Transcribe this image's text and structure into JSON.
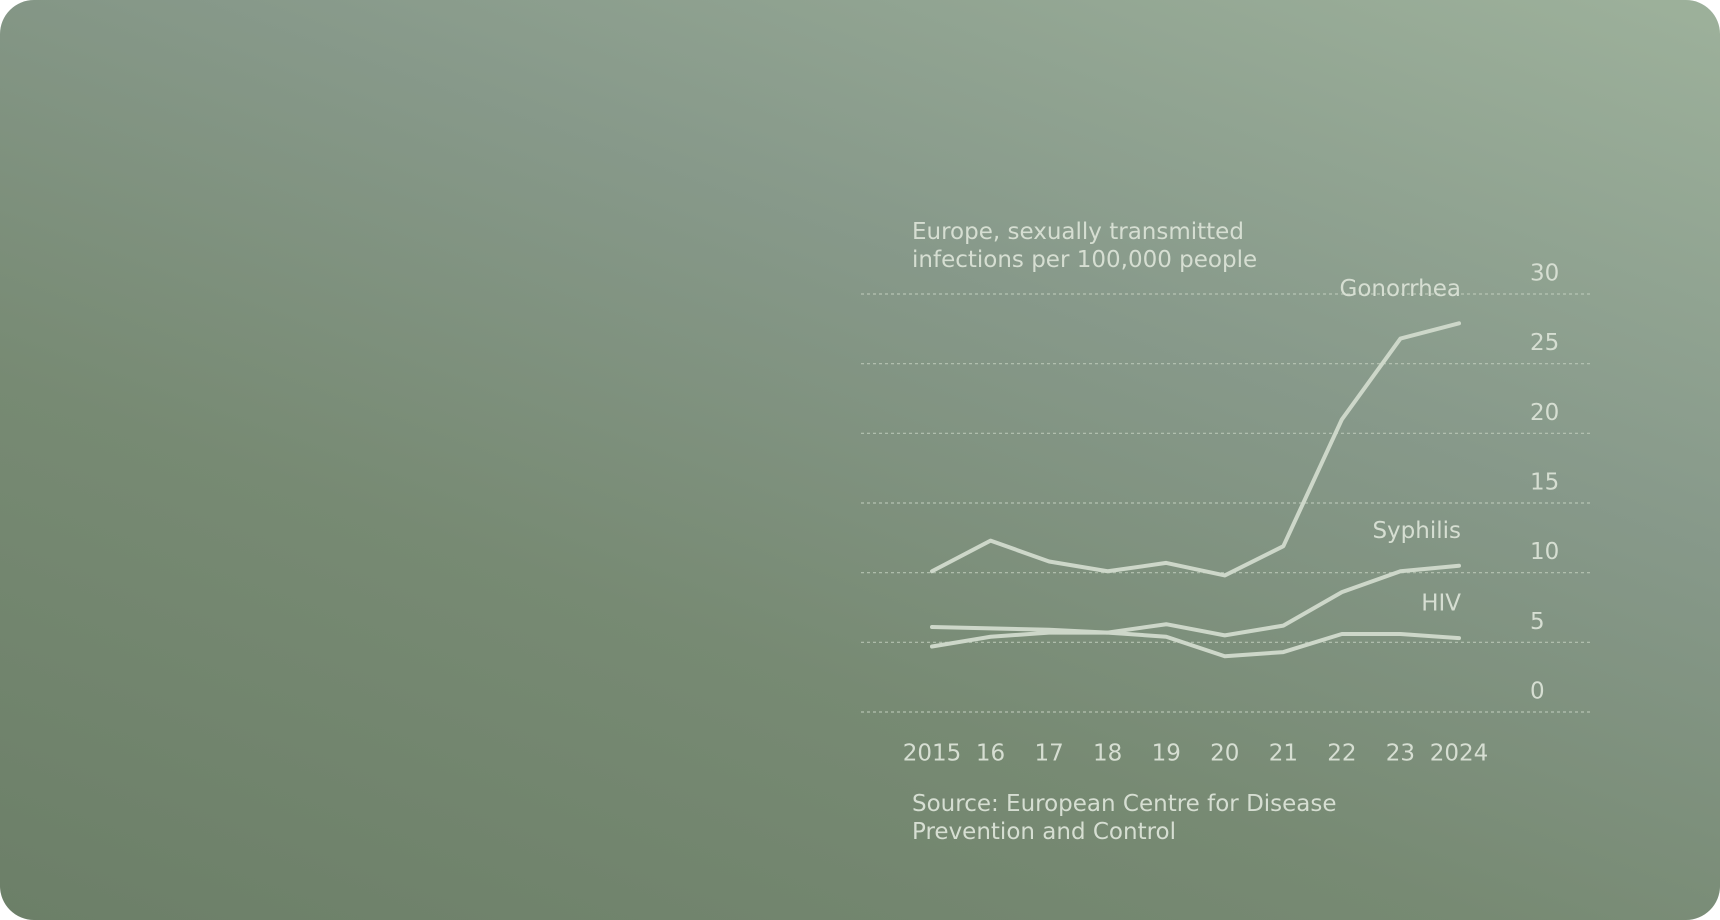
{
  "chart_data": {
    "type": "line",
    "title": "Europe, sexually transmitted infections per 100,000 people",
    "source": "Source: European Centre for Disease Prevention and Control",
    "categories": [
      "2015",
      "16",
      "17",
      "18",
      "19",
      "20",
      "21",
      "22",
      "23",
      "2024"
    ],
    "series": [
      {
        "name": "Gonorrhea",
        "color": "#cdd7c9",
        "values": [
          10.1,
          12.3,
          10.8,
          10.1,
          10.7,
          9.8,
          11.9,
          21.0,
          26.8,
          27.9
        ]
      },
      {
        "name": "Syphilis",
        "color": "#cdd7c9",
        "values": [
          4.7,
          5.4,
          5.7,
          5.7,
          6.3,
          5.5,
          6.2,
          8.6,
          10.1,
          10.5
        ]
      },
      {
        "name": "HIV",
        "color": "#cdd7c9",
        "values": [
          6.1,
          6.0,
          5.9,
          5.7,
          5.4,
          4.0,
          4.3,
          5.6,
          5.6,
          5.3
        ]
      }
    ],
    "ylim": [
      0,
      30
    ],
    "yticks": [
      0,
      5,
      10,
      15,
      20,
      25,
      30
    ],
    "grid": true
  }
}
